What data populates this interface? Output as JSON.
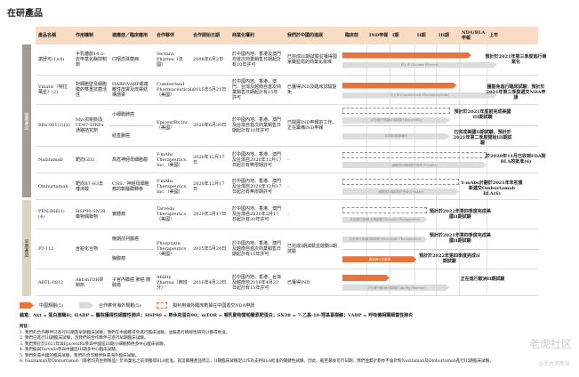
{
  "title": "在研產品",
  "headers": [
    "產品名稱",
    "作用機制",
    "適應症／臨床應用",
    "合作夥伴",
    "合作開始日期",
    "商業化權利",
    "我們於中國的進展",
    "臨床前",
    "IND申報",
    "I期",
    "II期",
    "III期",
    "NDA/BLA申報",
    "上市"
  ],
  "groups": [
    "後期產品",
    "早期產品"
  ],
  "rows": [
    {
      "name": "諾舒可(1)(4)",
      "mech": "半乳糖醇14 α-去甲基化酶抑制劑",
      "partner": "Vectans Pharma（法國）",
      "date": "2008年6月2日",
      "rights": "於中國內地、香港及澳門自首次商業銷售日期起計有10年許可",
      "status": "已完成III期試驗並獲得國家藥監局的商業化批准",
      "subs": [
        {
          "ind": "口咽念珠菌病",
          "bars": [
            {
              "type": "orange",
              "end": 5.45,
              "label": ""
            },
            {
              "type": "grey",
              "end": 6.2,
              "label": "已上市 (Vectans Pharma)"
            }
          ],
          "note": "預計於2021年第三季度進行商業化"
        }
      ]
    },
    {
      "name": "Vibativ（特拉萬星）(2)",
      "mech": "對細胞壁及細胞膜的雙重抗菌活性",
      "partner": "Cumberland Pharmaceuticals（美國）",
      "date": "2015年5月21日",
      "rights": "於中國內地、香港、澳門、台灣及越南自首次商業銷售日期起計有15年許可",
      "status": "已獲得IND及臨床試驗豁免",
      "subs": [
        {
          "ind": "HABP/VABP或複雜性皮膚及皮膚結構感染",
          "bars": [
            {
              "type": "orange",
              "end": 4.9,
              "label": ""
            },
            {
              "type": "grey",
              "end": 6.2,
              "label": "已上市 (Cumberland Pharmaceuticals)"
            }
          ],
          "note": "獲豁免進行臨床試驗：預計於2021年第三季度遞交NDA申請"
        }
      ]
    },
    {
      "name": "RRx-001(1)(3)",
      "mech": "Myc抑制劑及CD47-SIRPα通路拮抗劑",
      "partner": "EpicentRx,Inc.（美國）",
      "date": "2020年6月30日",
      "rights": "於中國內地、香港、澳門及台灣自首次商業銷售日期起計有10年許可",
      "status": "已開展IND申報前工作，正在籌備IND申報",
      "subs": [
        {
          "ind": "小細胞肺癌",
          "bars": [
            {
              "type": "dashed",
              "end": 4.6,
              "label": ""
            },
            {
              "type": "grey",
              "end": 4.6,
              "label": "正在進行美國III期試驗 (EpicentRx)"
            }
          ],
          "note": "預計於2021年底前完成美國III期試驗"
        },
        {
          "ind": "結直腸癌",
          "bars": [
            {
              "type": "grey",
              "end": 4.6,
              "label": "III期試驗籌備中"
            }
          ],
          "note": "已完成美國II期試驗，預計於2021年第二季度開始III期試驗"
        }
      ]
    },
    {
      "name": "Naxitamab",
      "mech": "靶向GD2",
      "partner": "Y-mAbs Therapeutics, Inc.（美國）",
      "date": "2020年12月17日",
      "rights": "於中國內地、香港、澳門及台灣自2020年12月17日起計有無限期許可",
      "status": "-",
      "subs": [
        {
          "ind": "高危神經母細胞瘤",
          "bars": [
            {
              "type": "dashed",
              "end": 6.0,
              "label": ""
            },
            {
              "type": "grey",
              "end": 6.0,
              "label": "關鍵性II期試驗已完成 (Y-mAbs)"
            }
          ],
          "note": "於2020年11月已收到FDA對BLA的批准(6)"
        }
      ]
    },
    {
      "name": "Omburtamab",
      "mech": "靶向B7-H3去唾液酸",
      "partner": "Y-mAbs Therapeutics, Inc.（美國）",
      "date": "2020年12月17日",
      "rights": "於中國內地、香港、澳門及台灣自2020年12月17日起計有無限期許可",
      "status": "-",
      "subs": [
        {
          "ind": "CNS／神經母細胞瘤的軟腦膜轉移",
          "bars": [
            {
              "type": "dashed",
              "end": 5.0,
              "label": ""
            },
            {
              "type": "grey",
              "end": 5.0,
              "label": "關鍵性II期試驗已完成 (Y-mAbs)"
            }
          ],
          "note": "Y-mAbs計劃於2021年年初重新遞交Omburtamab BLA(6)"
        }
      ]
    },
    {
      "name": "PEN-866(1)(4)",
      "mech": "HSP90-SN38藥物偶聯物",
      "partner": "Tarveda Therapeutics（美國）",
      "date": "2020年3月17日",
      "rights": "於中國內地、香港、澳門及台灣自2020年3月17日起計有20年許可",
      "status": "-",
      "subs": [
        {
          "ind": "實體瘤",
          "bars": [
            {
              "type": "dashed",
              "end": 3.6,
              "label": ""
            },
            {
              "type": "grey",
              "end": 3.6,
              "label": "正在進行美國I/II期試驗 (Tarveda Therapeutics)"
            }
          ],
          "note": "預計於2022年第四季度完成美國II期試驗"
        }
      ]
    },
    {
      "name": "PT-112",
      "mech": "含鉑化合物",
      "partner": "Phosplatin Therapeutics（美國）",
      "date": "2015年5月26日",
      "rights": "於中國內地、香港、澳門及越南自首次商業銷售日期起計有15年許可",
      "status": "已完成I期試驗並啟動II期試驗",
      "subs": [
        {
          "ind": "晚期前列腺癌",
          "bars": [
            {
              "type": "grey",
              "end": 3.6,
              "label": "正在進行美國II期試驗 (Phosplatin Therapeutics)"
            }
          ],
          "note": "預計於2021年第四季度完成美國II期試驗"
        },
        {
          "ind": "胸腺瘤",
          "bars": [
            {
              "type": "orange",
              "end": 3.1,
              "label": "首次病人已給藥"
            }
          ],
          "note": "預計於2022年第四季度完成II期試驗"
        }
      ]
    },
    {
      "name": "ABTL-0812",
      "mech": "Akt/mTOR抑制劑",
      "partner": "Ability Pharma（西班牙）",
      "date": "2016年4月22日",
      "rights": "於中國內地、香港、台灣及越南自2016年4月22日起計有15年許可",
      "status": "已獲得IND",
      "subs": [
        {
          "ind": "子宮內膜癌 肺癌 胰腺癌",
          "bars": [
            {
              "type": "orange",
              "end": 2.0,
              "label": ""
            },
            {
              "type": "grey",
              "end": 4.6,
              "label": "正在進行歐洲II期試驗 (Ability Pharma)"
            }
          ],
          "note": "正在進行歐洲II期試驗"
        }
      ]
    }
  ],
  "legend": [
    "中國規劃(5)",
    "合作夥伴海外規劃(5)",
    "擬利用海外臨床數據在中國遞交NDA申請"
  ],
  "colors": {
    "orange": "#e8743b",
    "grey": "#dcdcdc",
    "header": "#f8dcc4"
  },
  "abbr": "縮寫：Akt = 蛋白激酶B；HABP = 醫院獲得性細菌性肺炎；HSP90 = 熱休克蛋白90；mTOR = 哺乳動物雷帕黴素靶蛋白；SN38 = 7-乙基-10-羥基喜樹鹼；VABP = 呼吸機相關細菌性肺炎",
  "notes_title": "附註：",
  "notes": [
    "1. 我們的合作夥伴已進行III期及早期臨床試驗，我們在中國獲得免進行臨床試驗，並擬進行橋接性研究以獲得批准。",
    "2. 我們已進行III期臨床試驗，且我們的合作夥伴已進行早期臨床試驗。",
    "3. 我們預計於2021年與EpicentRx參與中國區III期小細胞肺癌多中心臨床試驗。",
    "4. 我們擬與Tarveda參與中國區III期多中心臨床試驗。",
    "5. 我們負責中國的臨床試驗，我們的合作夥伴負責海外臨床試驗。",
    "6. Naxitamab及Omburtamab（兩者均為生物製品）於商業化之前須獲得BLA批准。就這兩種產品而言，II期臨床試驗足以作為支持BLA批准的關鍵性試驗。因此，截至最後可行日期，我們並無計劃亦不會針對Naxitamab及Omburtamab進行III期臨床試驗。"
  ],
  "watermark": "老虎社区",
  "watermark2": "@老虎港新股"
}
